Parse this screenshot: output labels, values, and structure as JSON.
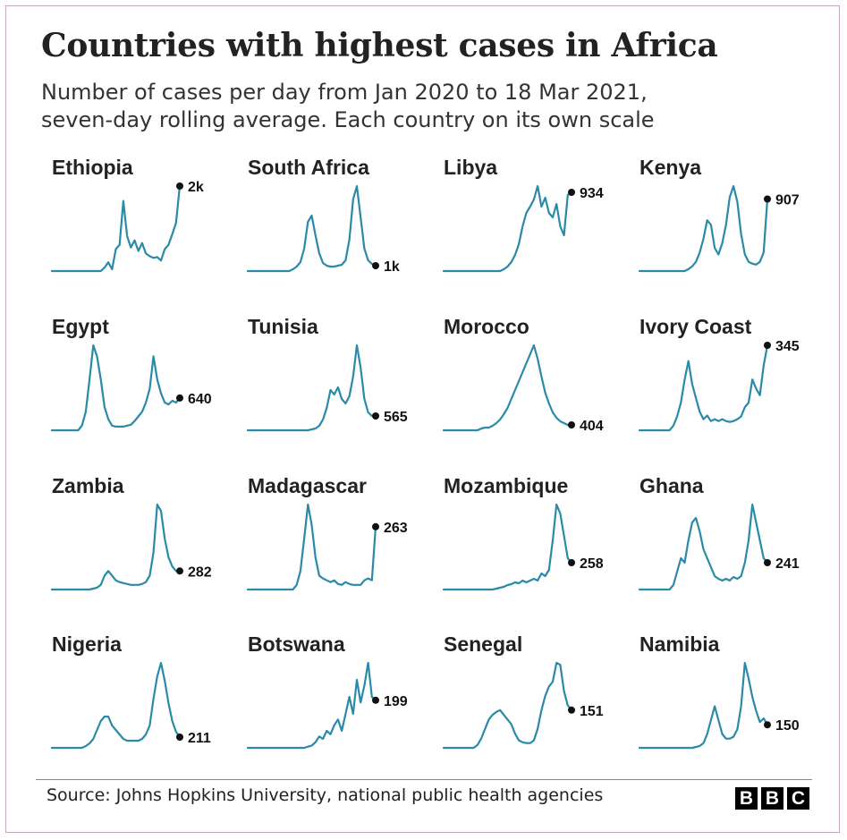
{
  "header": {
    "title": "Countries with highest cases in Africa",
    "subtitle_line1": "Number of cases per day from Jan 2020 to 18 Mar 2021,",
    "subtitle_line2": "seven-day rolling average. Each country on its own scale"
  },
  "footer": {
    "source": "Source: Johns Hopkins University, national public health agencies",
    "logo_letters": [
      "B",
      "B",
      "C"
    ]
  },
  "colors": {
    "line": "#2a8aa8",
    "marker": "#111111",
    "text": "#222222",
    "border": "#c9a7c0"
  },
  "chart_data": {
    "type": "line",
    "title": "Countries with highest cases in Africa",
    "subtitle": "Number of cases per day from Jan 2020 to 18 Mar 2021, seven-day rolling average. Each country on its own scale",
    "xlabel": "",
    "ylabel": "",
    "x_range": [
      "Jan 2020",
      "18 Mar 2021"
    ],
    "x_points": 35,
    "y_scale": "independent per country, 0 to each series maximum",
    "grid": false,
    "axes_visible": false,
    "series": [
      {
        "name": "Ethiopia",
        "end_label": "2k",
        "end_value": 2000,
        "values": [
          0,
          0,
          0,
          0,
          0,
          0,
          0,
          0,
          0,
          0,
          0,
          0,
          0,
          0,
          0.04,
          0.1,
          0.02,
          0.25,
          0.3,
          0.8,
          0.4,
          0.27,
          0.35,
          0.23,
          0.32,
          0.2,
          0.17,
          0.15,
          0.16,
          0.12,
          0.25,
          0.3,
          0.42,
          0.55,
          0.97
        ]
      },
      {
        "name": "South Africa",
        "end_label": "1k",
        "end_value": 1000,
        "values": [
          0,
          0,
          0,
          0,
          0,
          0,
          0,
          0,
          0,
          0,
          0,
          0,
          0.02,
          0.05,
          0.1,
          0.25,
          0.55,
          0.62,
          0.4,
          0.2,
          0.09,
          0.06,
          0.05,
          0.05,
          0.06,
          0.07,
          0.12,
          0.35,
          0.8,
          0.95,
          0.6,
          0.25,
          0.12,
          0.08,
          0.06
        ]
      },
      {
        "name": "Libya",
        "end_label": "934",
        "end_value": 934,
        "values": [
          0,
          0,
          0,
          0,
          0,
          0,
          0,
          0,
          0,
          0,
          0,
          0,
          0,
          0,
          0,
          0,
          0.02,
          0.05,
          0.1,
          0.18,
          0.3,
          0.5,
          0.65,
          0.72,
          0.8,
          0.95,
          0.72,
          0.82,
          0.65,
          0.6,
          0.75,
          0.5,
          0.4,
          0.85,
          0.88
        ]
      },
      {
        "name": "Kenya",
        "end_label": "907",
        "end_value": 907,
        "values": [
          0,
          0,
          0,
          0,
          0,
          0,
          0,
          0,
          0,
          0,
          0,
          0,
          0,
          0.02,
          0.05,
          0.1,
          0.2,
          0.35,
          0.55,
          0.5,
          0.25,
          0.18,
          0.3,
          0.5,
          0.8,
          0.92,
          0.75,
          0.4,
          0.18,
          0.1,
          0.08,
          0.07,
          0.1,
          0.2,
          0.78
        ]
      },
      {
        "name": "Egypt",
        "end_label": "640",
        "end_value": 640,
        "values": [
          0,
          0,
          0,
          0,
          0,
          0,
          0,
          0,
          0.05,
          0.2,
          0.55,
          0.92,
          0.8,
          0.55,
          0.25,
          0.12,
          0.05,
          0.04,
          0.04,
          0.04,
          0.05,
          0.06,
          0.1,
          0.15,
          0.2,
          0.3,
          0.45,
          0.8,
          0.55,
          0.4,
          0.3,
          0.28,
          0.32,
          0.3,
          0.35
        ]
      },
      {
        "name": "Tunisia",
        "end_label": "565",
        "end_value": 565,
        "values": [
          0,
          0,
          0,
          0,
          0,
          0,
          0,
          0,
          0,
          0,
          0,
          0,
          0,
          0,
          0,
          0,
          0,
          0.01,
          0.02,
          0.05,
          0.12,
          0.25,
          0.45,
          0.4,
          0.48,
          0.35,
          0.3,
          0.38,
          0.6,
          0.95,
          0.7,
          0.35,
          0.2,
          0.16,
          0.16
        ]
      },
      {
        "name": "Morocco",
        "end_label": "404",
        "end_value": 404,
        "values": [
          0,
          0,
          0,
          0,
          0,
          0,
          0,
          0,
          0,
          0,
          0.02,
          0.03,
          0.03,
          0.05,
          0.08,
          0.12,
          0.18,
          0.25,
          0.35,
          0.45,
          0.55,
          0.65,
          0.75,
          0.85,
          0.95,
          0.8,
          0.6,
          0.42,
          0.3,
          0.2,
          0.14,
          0.1,
          0.08,
          0.06,
          0.06
        ]
      },
      {
        "name": "Ivory Coast",
        "end_label": "345",
        "end_value": 345,
        "values": [
          0,
          0,
          0,
          0,
          0,
          0,
          0,
          0,
          0,
          0.05,
          0.15,
          0.3,
          0.55,
          0.75,
          0.5,
          0.35,
          0.2,
          0.12,
          0.16,
          0.1,
          0.12,
          0.1,
          0.12,
          0.1,
          0.09,
          0.1,
          0.12,
          0.15,
          0.25,
          0.3,
          0.55,
          0.45,
          0.38,
          0.7,
          0.92
        ]
      },
      {
        "name": "Zambia",
        "end_label": "282",
        "end_value": 282,
        "values": [
          0,
          0,
          0,
          0,
          0,
          0,
          0,
          0,
          0,
          0,
          0,
          0.01,
          0.02,
          0.05,
          0.15,
          0.2,
          0.15,
          0.1,
          0.08,
          0.07,
          0.06,
          0.05,
          0.05,
          0.05,
          0.06,
          0.08,
          0.15,
          0.4,
          0.92,
          0.85,
          0.55,
          0.35,
          0.25,
          0.2,
          0.2
        ]
      },
      {
        "name": "Madagascar",
        "end_label": "263",
        "end_value": 263,
        "values": [
          0,
          0,
          0,
          0,
          0,
          0,
          0,
          0,
          0,
          0,
          0,
          0,
          0,
          0.05,
          0.2,
          0.55,
          0.92,
          0.7,
          0.35,
          0.15,
          0.12,
          0.1,
          0.08,
          0.1,
          0.06,
          0.05,
          0.08,
          0.06,
          0.05,
          0.05,
          0.05,
          0.1,
          0.12,
          0.1,
          0.68
        ]
      },
      {
        "name": "Mozambique",
        "end_label": "258",
        "end_value": 258,
        "values": [
          0,
          0,
          0,
          0,
          0,
          0,
          0,
          0,
          0,
          0,
          0,
          0,
          0,
          0,
          0.01,
          0.02,
          0.03,
          0.05,
          0.06,
          0.08,
          0.07,
          0.1,
          0.08,
          0.1,
          0.12,
          0.1,
          0.18,
          0.15,
          0.22,
          0.55,
          0.95,
          0.85,
          0.6,
          0.35,
          0.3
        ]
      },
      {
        "name": "Ghana",
        "end_label": "241",
        "end_value": 241,
        "values": [
          0,
          0,
          0,
          0,
          0,
          0,
          0,
          0,
          0,
          0.05,
          0.2,
          0.35,
          0.3,
          0.55,
          0.75,
          0.8,
          0.65,
          0.45,
          0.35,
          0.25,
          0.15,
          0.12,
          0.1,
          0.12,
          0.1,
          0.14,
          0.12,
          0.15,
          0.3,
          0.55,
          0.95,
          0.75,
          0.55,
          0.35,
          0.3
        ]
      },
      {
        "name": "Nigeria",
        "end_label": "211",
        "end_value": 211,
        "values": [
          0,
          0,
          0,
          0,
          0,
          0,
          0,
          0,
          0,
          0.02,
          0.05,
          0.1,
          0.2,
          0.3,
          0.35,
          0.35,
          0.25,
          0.2,
          0.15,
          0.1,
          0.08,
          0.08,
          0.08,
          0.08,
          0.1,
          0.15,
          0.25,
          0.55,
          0.8,
          0.95,
          0.75,
          0.5,
          0.3,
          0.18,
          0.12
        ]
      },
      {
        "name": "Botswana",
        "end_label": "199",
        "end_value": 199,
        "values": [
          0,
          0,
          0,
          0,
          0,
          0,
          0,
          0,
          0,
          0,
          0,
          0,
          0,
          0,
          0,
          0,
          0.01,
          0.02,
          0.05,
          0.1,
          0.08,
          0.15,
          0.12,
          0.2,
          0.25,
          0.15,
          0.3,
          0.45,
          0.3,
          0.6,
          0.4,
          0.55,
          0.75,
          0.45,
          0.42
        ]
      },
      {
        "name": "Senegal",
        "end_label": "151",
        "end_value": 151,
        "values": [
          0,
          0,
          0,
          0,
          0,
          0,
          0,
          0,
          0,
          0.03,
          0.1,
          0.2,
          0.3,
          0.35,
          0.38,
          0.4,
          0.35,
          0.3,
          0.25,
          0.15,
          0.08,
          0.06,
          0.05,
          0.05,
          0.08,
          0.2,
          0.4,
          0.55,
          0.65,
          0.7,
          0.9,
          0.88,
          0.6,
          0.45,
          0.4
        ]
      },
      {
        "name": "Namibia",
        "end_label": "150",
        "end_value": 150,
        "values": [
          0,
          0,
          0,
          0,
          0,
          0,
          0,
          0,
          0,
          0,
          0,
          0,
          0,
          0,
          0,
          0.01,
          0.02,
          0.05,
          0.15,
          0.3,
          0.45,
          0.3,
          0.15,
          0.1,
          0.1,
          0.12,
          0.2,
          0.45,
          0.92,
          0.75,
          0.55,
          0.4,
          0.28,
          0.32,
          0.25
        ]
      }
    ]
  }
}
